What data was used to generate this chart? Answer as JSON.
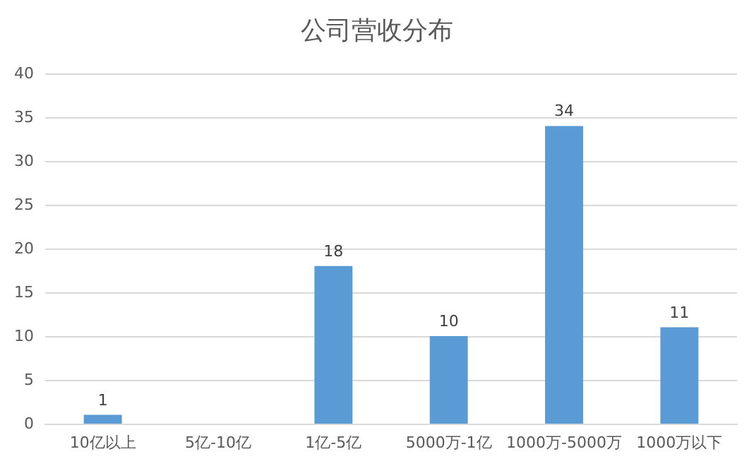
{
  "chart_data": {
    "type": "bar",
    "title": "公司营收分布",
    "categories": [
      "10亿以上",
      "5亿-10亿",
      "1亿-5亿",
      "5000万-1亿",
      "1000万-5000万",
      "1000万以下"
    ],
    "values": [
      1,
      null,
      18,
      10,
      34,
      11
    ],
    "value_labels": [
      "1",
      null,
      "18",
      "10",
      "34",
      "11"
    ],
    "color": "#5b9bd5",
    "ylim": [
      0,
      40
    ],
    "yticks": [
      0,
      5,
      10,
      15,
      20,
      25,
      30,
      35,
      40
    ],
    "grid": "y"
  }
}
